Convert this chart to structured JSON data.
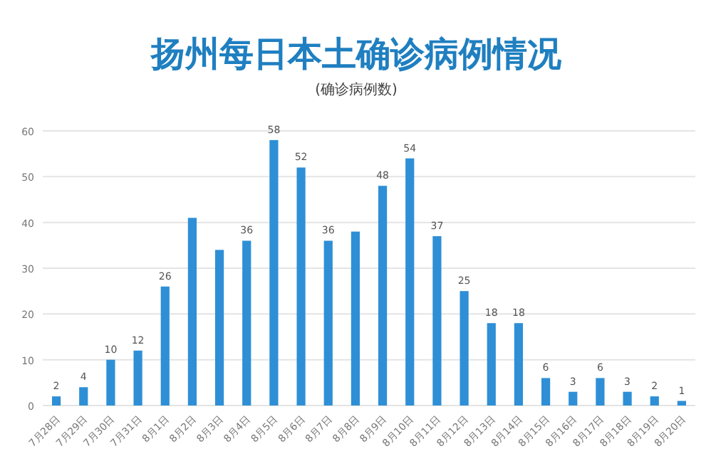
{
  "chart_data": {
    "type": "bar",
    "title": "扬州每日本土确诊病例情况",
    "subtitle": "(确诊病例数)",
    "categories": [
      "7月28日",
      "7月29日",
      "7月30日",
      "7月31日",
      "8月1日",
      "8月2日",
      "8月3日",
      "8月4日",
      "8月5日",
      "8月6日",
      "8月7日",
      "8月8日",
      "8月9日",
      "8月10日",
      "8月11日",
      "8月12日",
      "8月13日",
      "8月14日",
      "8月15日",
      "8月16日",
      "8月17日",
      "8月18日",
      "8月19日",
      "8月20日"
    ],
    "values": [
      2,
      4,
      10,
      12,
      26,
      41,
      34,
      36,
      58,
      52,
      36,
      38,
      48,
      54,
      37,
      25,
      18,
      18,
      6,
      3,
      6,
      3,
      2,
      1
    ],
    "value_labels": [
      "2",
      "4",
      "10",
      "12",
      "26",
      null,
      null,
      "36",
      "58",
      "52",
      "36",
      null,
      "48",
      "54",
      "37",
      "25",
      "18",
      "18",
      "6",
      "3",
      "6",
      "3",
      "2",
      "1"
    ],
    "color": "#2e8fd6",
    "ylim": [
      0,
      60
    ],
    "yticks": [
      0,
      10,
      20,
      30,
      40,
      50,
      60
    ],
    "grid": "y"
  }
}
